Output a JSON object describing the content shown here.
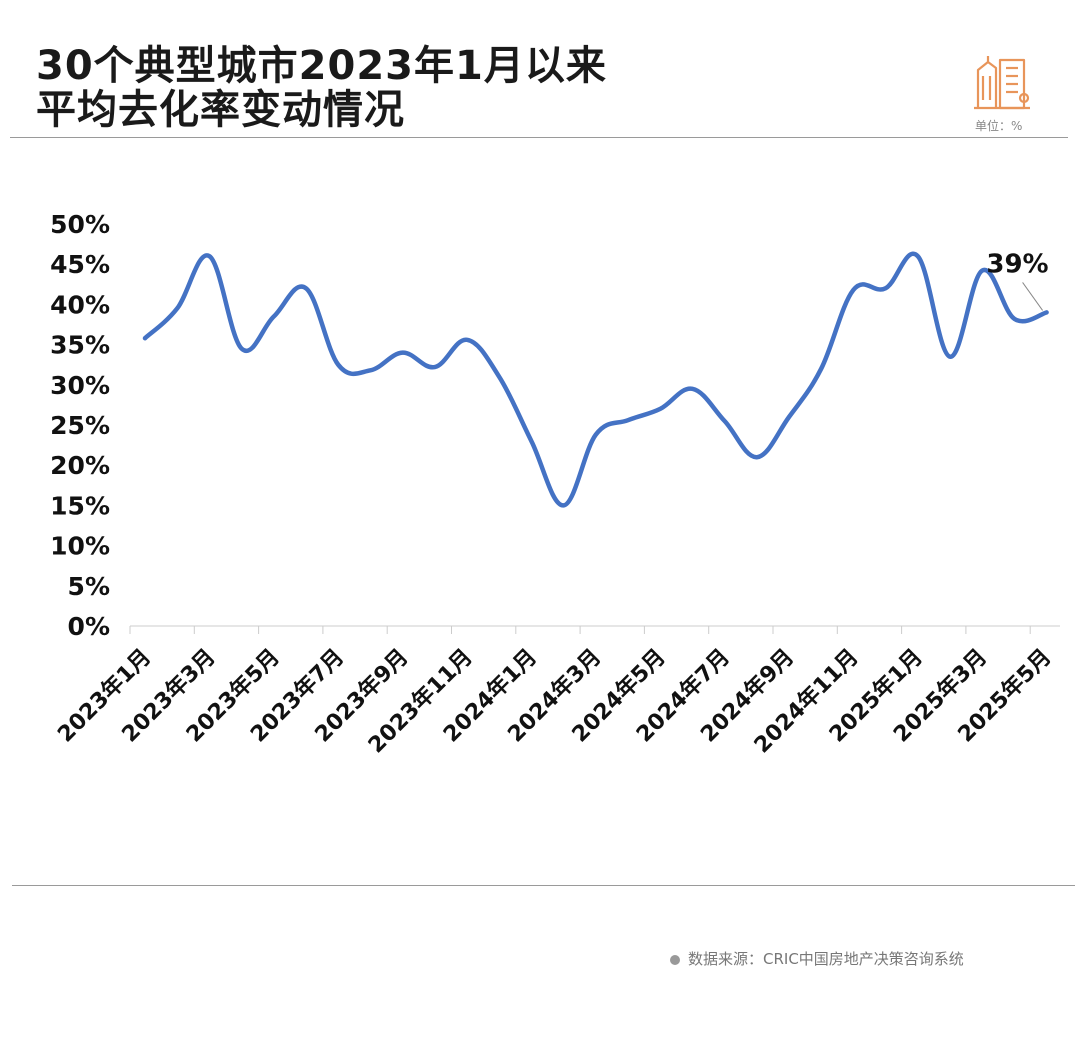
{
  "header": {
    "title_line1": "30个典型城市2023年1月以来",
    "title_line2": "平均去化率变动情况",
    "unit": "单位：%",
    "logo_icon": "city-buildings-icon"
  },
  "footer": {
    "source": "数据来源：CRIC中国房地产决策咨询系统"
  },
  "colors": {
    "line": "#4472C4",
    "accent": "#E8955A"
  },
  "chart_data": {
    "type": "line",
    "title": "30个典型城市2023年1月以来平均去化率变动情况",
    "xlabel": "",
    "ylabel": "",
    "ylim": [
      0,
      50
    ],
    "yticks": [
      "0%",
      "5%",
      "10%",
      "15%",
      "20%",
      "25%",
      "30%",
      "35%",
      "40%",
      "45%",
      "50%"
    ],
    "x_tick_labels": [
      "2023年1月",
      "2023年3月",
      "2023年5月",
      "2023年7月",
      "2023年9月",
      "2023年11月",
      "2024年1月",
      "2024年3月",
      "2024年5月",
      "2024年7月",
      "2024年9月",
      "2024年11月",
      "2025年1月",
      "2025年3月",
      "2025年5月"
    ],
    "categories": [
      "2023年1月",
      "2023年2月",
      "2023年3月",
      "2023年4月",
      "2023年5月",
      "2023年6月",
      "2023年7月",
      "2023年8月",
      "2023年9月",
      "2023年10月",
      "2023年11月",
      "2023年12月",
      "2024年1月",
      "2024年2月",
      "2024年3月",
      "2024年4月",
      "2024年5月",
      "2024年6月",
      "2024年7月",
      "2024年8月",
      "2024年9月",
      "2024年10月",
      "2024年11月",
      "2024年12月",
      "2025年1月",
      "2025年2月",
      "2025年3月",
      "2025年4月",
      "2025年5月"
    ],
    "values": [
      35.8,
      39.5,
      46,
      34.5,
      38.5,
      42,
      32.5,
      31.8,
      34,
      32.2,
      35.6,
      31,
      23,
      15,
      23.8,
      25.6,
      27,
      29.5,
      25.5,
      21,
      26,
      32,
      41.8,
      42,
      46,
      33.5,
      44.2,
      38.2,
      39
    ],
    "annotation": {
      "category": "2025年5月",
      "label": "39%"
    },
    "grid": false,
    "legend": "none"
  }
}
